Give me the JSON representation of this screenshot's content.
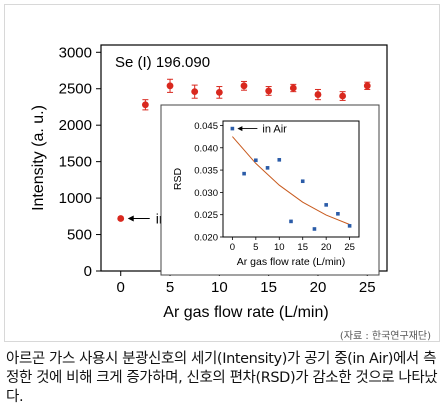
{
  "chart_data": [
    {
      "type": "scatter",
      "annotation": "Se (I) 196.090",
      "xlabel": "Ar gas flow rate (L/min)",
      "ylabel": "Intensity (a. u.)",
      "xlim": [
        -2,
        27
      ],
      "ylim": [
        0,
        3100
      ],
      "xticks": [
        "0",
        "5",
        "10",
        "15",
        "20",
        "25"
      ],
      "xtick_values": [
        0,
        5,
        10,
        15,
        20,
        25
      ],
      "yticks": [
        "0",
        "500",
        "1000",
        "1500",
        "2000",
        "2500",
        "3000"
      ],
      "ytick_values": [
        0,
        500,
        1000,
        1500,
        2000,
        2500,
        3000
      ],
      "series": [
        {
          "name": "in Air",
          "color": "#d9281e",
          "points": [
            {
              "x": 0,
              "y": 720,
              "err": 0
            },
            {
              "x": 2.5,
              "y": 2280,
              "err": 70
            },
            {
              "x": 5,
              "y": 2540,
              "err": 90
            },
            {
              "x": 7.5,
              "y": 2460,
              "err": 90
            },
            {
              "x": 10,
              "y": 2450,
              "err": 80
            },
            {
              "x": 12.5,
              "y": 2540,
              "err": 60
            },
            {
              "x": 15,
              "y": 2470,
              "err": 60
            },
            {
              "x": 17.5,
              "y": 2510,
              "err": 50
            },
            {
              "x": 20,
              "y": 2420,
              "err": 70
            },
            {
              "x": 22.5,
              "y": 2400,
              "err": 60
            },
            {
              "x": 25,
              "y": 2540,
              "err": 50
            }
          ]
        }
      ],
      "legend": "lower-left",
      "grid": false
    },
    {
      "type": "scatter",
      "placement": "inset",
      "xlabel": "Ar gas flow rate (L/min)",
      "ylabel": "RSD",
      "xlim": [
        -2,
        27
      ],
      "ylim": [
        0.02,
        0.046
      ],
      "xticks": [
        "0",
        "5",
        "10",
        "15",
        "20",
        "25"
      ],
      "xtick_values": [
        0,
        5,
        10,
        15,
        20,
        25
      ],
      "yticks": [
        "0.020",
        "0.025",
        "0.030",
        "0.035",
        "0.040",
        "0.045"
      ],
      "ytick_values": [
        0.02,
        0.025,
        0.03,
        0.035,
        0.04,
        0.045
      ],
      "series": [
        {
          "name": "in Air",
          "color": "#2b5ca8",
          "points": [
            {
              "x": 0,
              "y": 0.0443
            },
            {
              "x": 2.5,
              "y": 0.0342
            },
            {
              "x": 5,
              "y": 0.0372
            },
            {
              "x": 7.5,
              "y": 0.0355
            },
            {
              "x": 10,
              "y": 0.0373
            },
            {
              "x": 12.5,
              "y": 0.0235
            },
            {
              "x": 15,
              "y": 0.0325
            },
            {
              "x": 17.5,
              "y": 0.0218
            },
            {
              "x": 20,
              "y": 0.0272
            },
            {
              "x": 22.5,
              "y": 0.0252
            },
            {
              "x": 25,
              "y": 0.0225
            }
          ]
        }
      ],
      "fit": {
        "type": "exponential-decay",
        "color": "#c85a1e",
        "points": [
          {
            "x": 0,
            "y": 0.0425
          },
          {
            "x": 5,
            "y": 0.0365
          },
          {
            "x": 10,
            "y": 0.0316
          },
          {
            "x": 15,
            "y": 0.0278
          },
          {
            "x": 20,
            "y": 0.0249
          },
          {
            "x": 25,
            "y": 0.0228
          }
        ]
      },
      "legend": "top-left",
      "grid": false
    }
  ],
  "source_note": "(자료 : 한국연구재단)",
  "caption": "아르곤 가스 사용시 분광신호의 세기(Intensity)가 공기 중(in Air)에서 측정한 것에 비해 크게 증가하며, 신호의 편차(RSD)가 감소한 것으로 나타났다."
}
